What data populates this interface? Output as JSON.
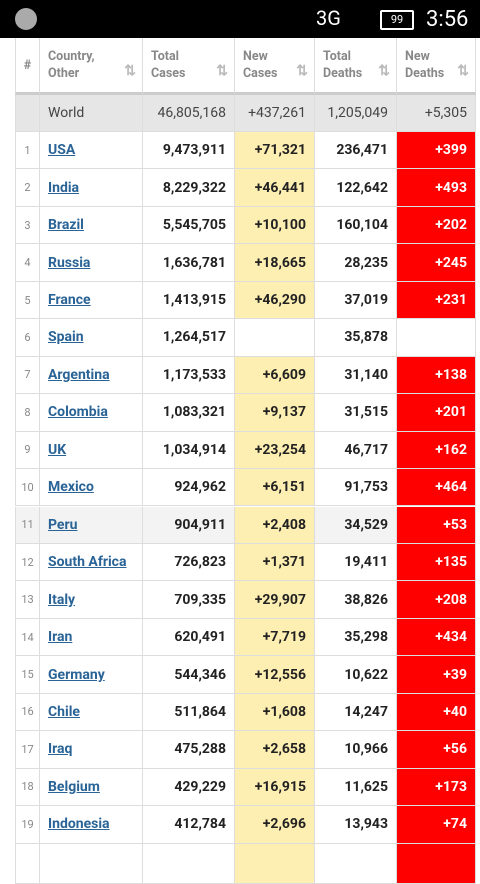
{
  "status_bar": {
    "network": "3G",
    "battery": "99",
    "time": "3:56"
  },
  "table": {
    "headers": [
      "#",
      "Country, Other",
      "Total Cases",
      "New Cases",
      "Total Deaths",
      "New Deaths"
    ],
    "world": {
      "label": "World",
      "total_cases": "46,805,168",
      "new_cases": "+437,261",
      "total_deaths": "1,205,049",
      "new_deaths": "+5,305"
    },
    "rows": [
      [
        "1",
        "USA",
        "9,473,911",
        "+71,321",
        "236,471",
        "+399"
      ],
      [
        "2",
        "India",
        "8,229,322",
        "+46,441",
        "122,642",
        "+493"
      ],
      [
        "3",
        "Brazil",
        "5,545,705",
        "+10,100",
        "160,104",
        "+202"
      ],
      [
        "4",
        "Russia",
        "1,636,781",
        "+18,665",
        "28,235",
        "+245"
      ],
      [
        "5",
        "France",
        "1,413,915",
        "+46,290",
        "37,019",
        "+231"
      ],
      [
        "6",
        "Spain",
        "1,264,517",
        null,
        "35,878",
        null
      ],
      [
        "7",
        "Argentina",
        "1,173,533",
        "+6,609",
        "31,140",
        "+138"
      ],
      [
        "8",
        "Colombia",
        "1,083,321",
        "+9,137",
        "31,515",
        "+201"
      ],
      [
        "9",
        "UK",
        "1,034,914",
        "+23,254",
        "46,717",
        "+162"
      ],
      [
        "10",
        "Mexico",
        "924,962",
        "+6,151",
        "91,753",
        "+464"
      ],
      [
        "11",
        "Peru",
        "904,911",
        "+2,408",
        "34,529",
        "+53"
      ],
      [
        "12",
        "South Africa",
        "726,823",
        "+1,371",
        "19,411",
        "+135"
      ],
      [
        "13",
        "Italy",
        "709,335",
        "+29,907",
        "38,826",
        "+208"
      ],
      [
        "14",
        "Iran",
        "620,491",
        "+7,719",
        "35,298",
        "+434"
      ],
      [
        "15",
        "Germany",
        "544,346",
        "+12,556",
        "10,622",
        "+39"
      ],
      [
        "16",
        "Chile",
        "511,864",
        "+1,608",
        "14,247",
        "+40"
      ],
      [
        "17",
        "Iraq",
        "475,288",
        "+2,658",
        "10,966",
        "+56"
      ],
      [
        "18",
        "Belgium",
        "429,229",
        "+16,915",
        "11,625",
        "+173"
      ],
      [
        "19",
        "Indonesia",
        "412,784",
        "+2,696",
        "13,943",
        "+74"
      ]
    ]
  }
}
